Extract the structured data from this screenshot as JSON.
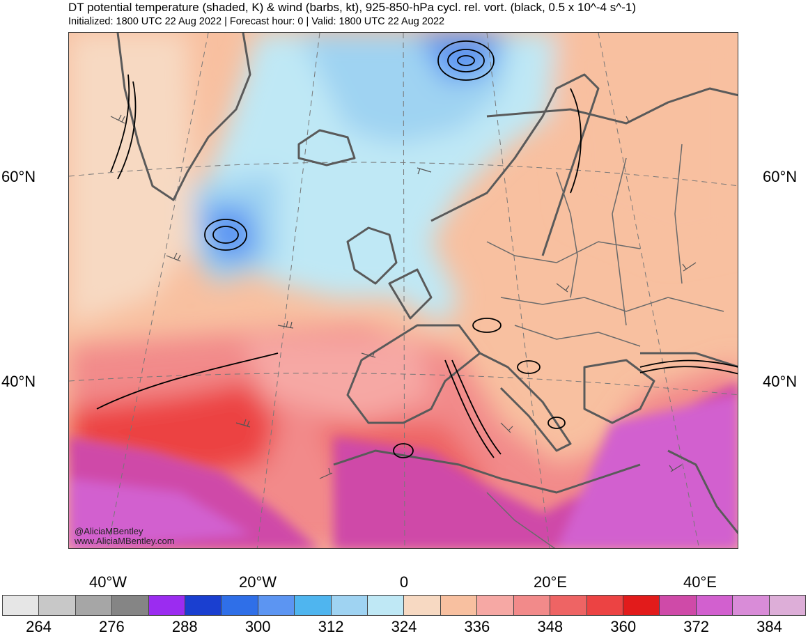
{
  "header": {
    "title": "DT potential temperature (shaded, K) & wind (barbs, kt), 925-850-hPa cycl. rel. vort. (black, 0.5 x 10^-4 s^-1)",
    "subtitle": "Initialized: 1800 UTC 22 Aug 2022 | Forecast hour: 0 | Valid: 1800 UTC 22 Aug 2022"
  },
  "map": {
    "lat_labels": [
      "60°N",
      "40°N"
    ],
    "lon_labels": [
      "40°W",
      "20°W",
      "0",
      "20°E",
      "40°E"
    ],
    "credit_handle": "@AliciaMBentley",
    "credit_site": "www.AliciaMBentley.com"
  },
  "colorbar": {
    "labels": [
      "264",
      "276",
      "288",
      "300",
      "312",
      "324",
      "336",
      "348",
      "360",
      "372",
      "384"
    ],
    "colors": [
      "#e6e6e6",
      "#c8c8c8",
      "#a6a6a6",
      "#858585",
      "#9b2cf0",
      "#1a3fd0",
      "#2f6fe8",
      "#5c95f2",
      "#4fb5ef",
      "#9fd3f2",
      "#bfe8f5",
      "#f7d9c2",
      "#f8c0a0",
      "#f6a8a4",
      "#f28a8a",
      "#ee6464",
      "#ec4343",
      "#e21b1b",
      "#cf4aa8",
      "#d260cf",
      "#d98cd8",
      "#ddaed8"
    ]
  },
  "palette": {
    "land": "#5a5a5a",
    "vorticity": "#000000",
    "barb": "#555555"
  }
}
